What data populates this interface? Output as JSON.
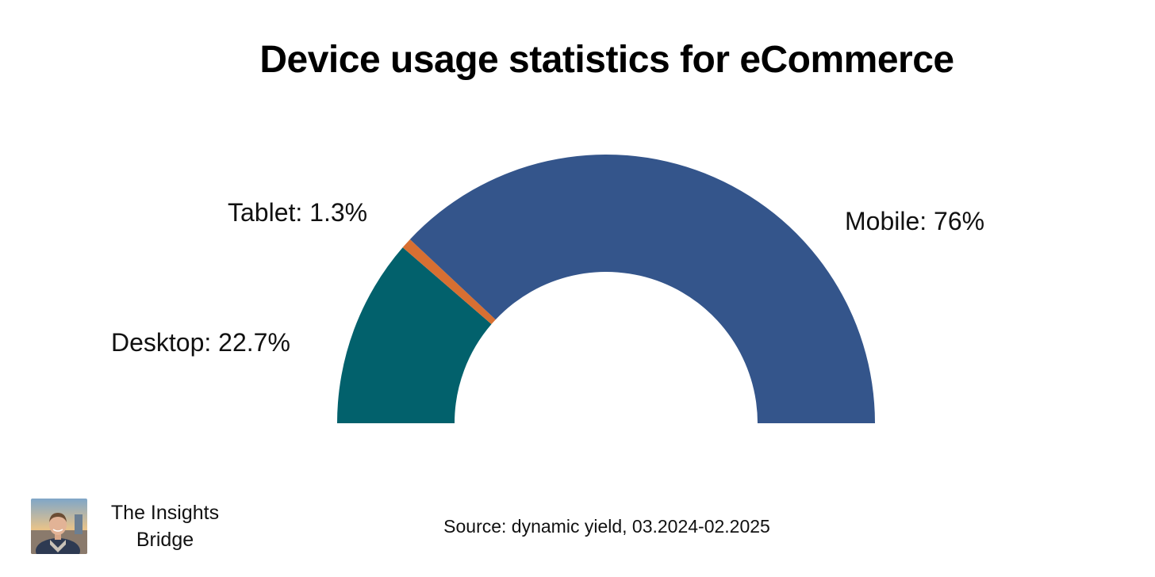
{
  "header": {
    "title": "Device usage statistics for eCommerce"
  },
  "chart_data": {
    "type": "pie",
    "variant": "half-donut",
    "title": "Device usage statistics for eCommerce",
    "slices": [
      {
        "name": "Desktop",
        "label": "Desktop: 22.7%",
        "value": 22.7,
        "color": "#02616C"
      },
      {
        "name": "Tablet",
        "label": "Tablet: 1.3%",
        "value": 1.3,
        "color": "#D76F32"
      },
      {
        "name": "Mobile",
        "label": "Mobile: 76%",
        "value": 76,
        "color": "#34558B"
      }
    ],
    "legend": "none"
  },
  "footer": {
    "source": "Source: dynamic yield, 03.2024-02.2025",
    "brand_line1": "The Insights",
    "brand_line2": "Bridge"
  }
}
